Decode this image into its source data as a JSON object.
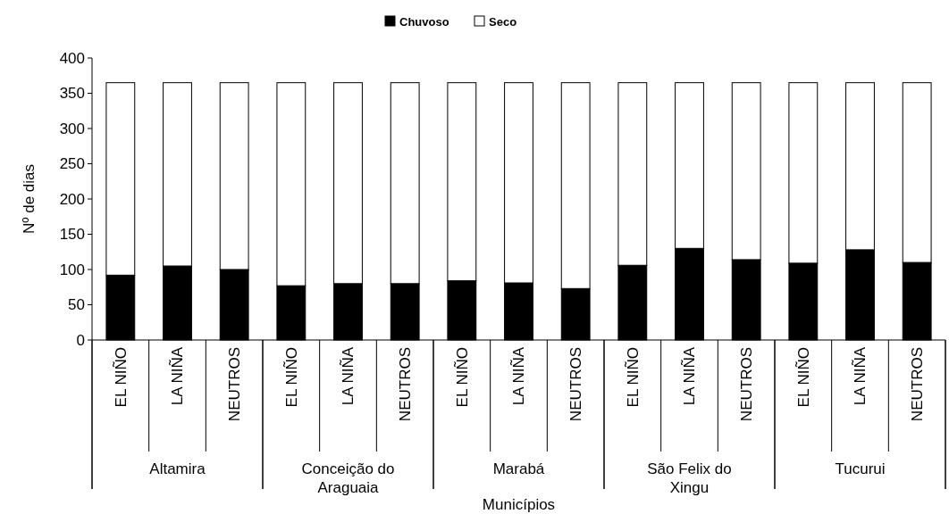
{
  "chart_data": {
    "type": "bar",
    "stacked": true,
    "xlabel": "Municípios",
    "ylabel": "Nº de dias",
    "categories": [
      "EL NIÑO",
      "LA NIÑA",
      "NEUTROS",
      "EL NIÑO",
      "LA NIÑA",
      "NEUTROS",
      "EL NIÑO",
      "LA NIÑA",
      "NEUTROS",
      "EL NIÑO",
      "LA NIÑA",
      "NEUTROS",
      "EL NIÑO",
      "LA NIÑA",
      "NEUTROS"
    ],
    "annotations": [
      "Altamira",
      "Conceição do Araguaia",
      "Marabá",
      "São Felix do Xingu",
      "Tucurui"
    ],
    "series": [
      {
        "name": "Chuvoso",
        "color": "#000000",
        "values": [
          92,
          105,
          100,
          77,
          80,
          80,
          84,
          81,
          73,
          106,
          130,
          114,
          109,
          128,
          110
        ]
      },
      {
        "name": "Seco",
        "color": "#ffffff",
        "values": [
          273,
          260,
          265,
          288,
          285,
          285,
          281,
          284,
          292,
          259,
          235,
          251,
          256,
          237,
          255
        ]
      }
    ],
    "ylim": [
      0,
      400
    ],
    "yticks": [
      0,
      50,
      100,
      150,
      200,
      250,
      300,
      350,
      400
    ],
    "grid": false,
    "legend": "top"
  }
}
